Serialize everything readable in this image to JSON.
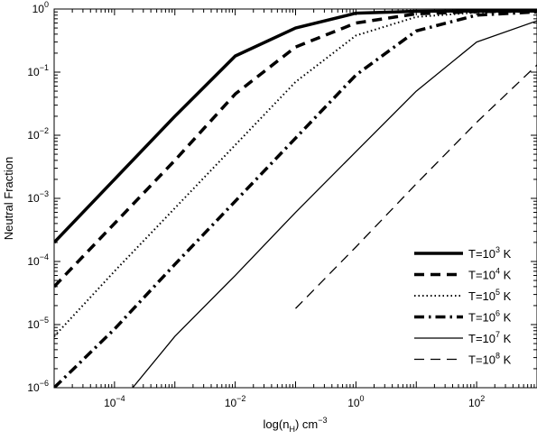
{
  "chart_data": {
    "type": "line",
    "xlabel": "log(n_H) cm^-3",
    "ylabel": "Neutral Fraction",
    "xscale": "log",
    "yscale": "log",
    "xlim": [
      1e-05,
      1000
    ],
    "ylim": [
      1e-06,
      1
    ],
    "x_ticks": [
      {
        "value": 0.0001,
        "base": "10",
        "exp": "−4"
      },
      {
        "value": 0.01,
        "base": "10",
        "exp": "−2"
      },
      {
        "value": 1,
        "base": "10",
        "exp": "0"
      },
      {
        "value": 100,
        "base": "10",
        "exp": "2"
      }
    ],
    "y_ticks": [
      {
        "value": 1e-06,
        "base": "10",
        "exp": "−6"
      },
      {
        "value": 1e-05,
        "base": "10",
        "exp": "−5"
      },
      {
        "value": 0.0001,
        "base": "10",
        "exp": "−4"
      },
      {
        "value": 0.001,
        "base": "10",
        "exp": "−3"
      },
      {
        "value": 0.01,
        "base": "10",
        "exp": "−2"
      },
      {
        "value": 0.1,
        "base": "10",
        "exp": "−1"
      },
      {
        "value": 1,
        "base": "10",
        "exp": "0"
      }
    ],
    "grid": false,
    "legend_position": "bottom-right",
    "series": [
      {
        "name": "T=10^3 K",
        "label_pre": "T=10",
        "label_exp": "3",
        "label_post": " K",
        "style": "solid-thick",
        "x": [
          1e-05,
          0.0001,
          0.001,
          0.01,
          0.1,
          1,
          10,
          100,
          1000
        ],
        "y": [
          0.0002,
          0.002,
          0.02,
          0.18,
          0.5,
          0.86,
          0.92,
          0.93,
          0.93
        ]
      },
      {
        "name": "T=10^4 K",
        "label_pre": "T=10",
        "label_exp": "4",
        "label_post": " K",
        "style": "dashed-thick",
        "x": [
          1e-05,
          0.0001,
          0.001,
          0.01,
          0.1,
          1,
          10,
          100,
          1000
        ],
        "y": [
          4e-05,
          0.0004,
          0.004,
          0.045,
          0.25,
          0.6,
          0.84,
          0.91,
          0.93
        ]
      },
      {
        "name": "T=10^5 K",
        "label_pre": "T=10",
        "label_exp": "5",
        "label_post": " K",
        "style": "dotted",
        "x": [
          1e-05,
          0.0001,
          0.001,
          0.01,
          0.1,
          1,
          10,
          100,
          1000
        ],
        "y": [
          6.5e-06,
          7e-05,
          0.0007,
          0.007,
          0.07,
          0.38,
          0.75,
          0.88,
          0.92
        ]
      },
      {
        "name": "T=10^6 K",
        "label_pre": "T=10",
        "label_exp": "6",
        "label_post": " K",
        "style": "dashdot-thick",
        "x": [
          1e-05,
          0.0001,
          0.001,
          0.01,
          0.1,
          1,
          10,
          100,
          1000
        ],
        "y": [
          1e-06,
          8.5e-06,
          9e-05,
          0.0009,
          0.009,
          0.09,
          0.45,
          0.8,
          0.9
        ]
      },
      {
        "name": "T=10^7 K",
        "label_pre": "T=10",
        "label_exp": "7",
        "label_post": " K",
        "style": "solid-thin",
        "x": [
          0.0002,
          0.001,
          0.01,
          0.1,
          1,
          10,
          100,
          1000
        ],
        "y": [
          1e-06,
          6.5e-06,
          6e-05,
          0.0006,
          0.0055,
          0.05,
          0.3,
          0.65
        ]
      },
      {
        "name": "T=10^8 K",
        "label_pre": "T=10",
        "label_exp": "8",
        "label_post": " K",
        "style": "dashed-thin",
        "x": [
          0.1,
          1,
          10,
          100,
          1000
        ],
        "y": [
          1.8e-05,
          0.00017,
          0.0017,
          0.016,
          0.13
        ]
      }
    ]
  }
}
